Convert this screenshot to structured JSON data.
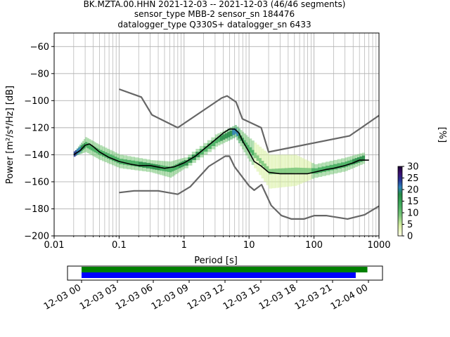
{
  "title": {
    "line1": "BK.MZTA.00.HHN   2021-12-03 -- 2021-12-03  (46/46 segments)",
    "line2": "sensor_type MBB-2 sensor_sn 184476",
    "line3": "datalogger_type Q330S+ datalogger_sn 6433"
  },
  "chart_data": [
    {
      "type": "heatmap",
      "title": "BK.MZTA.00.HHN   2021-12-03 -- 2021-12-03  (46/46 segments)",
      "xlabel": "Period [s]",
      "ylabel": "Power [m²/s⁴/Hz] [dB]",
      "xscale": "log",
      "xlim": [
        0.01,
        1000
      ],
      "ylim": [
        -200,
        -50
      ],
      "x_ticks": [
        0.01,
        0.1,
        1,
        10,
        100,
        1000
      ],
      "x_tick_labels": [
        "0.01",
        "0.1",
        "1",
        "10",
        "100",
        "1000"
      ],
      "y_ticks": [
        -200,
        -180,
        -160,
        -140,
        -120,
        -100,
        -80,
        -60
      ],
      "y_tick_labels": [
        "−200",
        "−180",
        "−160",
        "−140",
        "−120",
        "−100",
        "−80",
        "−60"
      ],
      "grid": true,
      "colorbar": {
        "label": "[%]",
        "ticks": [
          0,
          5,
          10,
          15,
          20,
          25,
          30
        ],
        "range": [
          0,
          30
        ],
        "colormap": [
          "#ffffe5",
          "#d9f0a3",
          "#78c679",
          "#41ab5d",
          "#238b45",
          "#2c7fb8",
          "#253494",
          "#3b0f70",
          "#1a0033"
        ]
      },
      "series": [
        {
          "name": "",
          "role": "mean",
          "color": "#000000",
          "points": [
            [
              0.02,
              -140
            ],
            [
              0.025,
              -137
            ],
            [
              0.03,
              -133
            ],
            [
              0.035,
              -132
            ],
            [
              0.04,
              -134
            ],
            [
              0.05,
              -138
            ],
            [
              0.07,
              -142
            ],
            [
              0.1,
              -145
            ],
            [
              0.15,
              -147
            ],
            [
              0.2,
              -148
            ],
            [
              0.3,
              -148
            ],
            [
              0.5,
              -150
            ],
            [
              0.7,
              -149
            ],
            [
              1,
              -146
            ],
            [
              1.5,
              -141
            ],
            [
              2,
              -136
            ],
            [
              3,
              -129
            ],
            [
              4,
              -124
            ],
            [
              5,
              -121
            ],
            [
              6,
              -121
            ],
            [
              7,
              -124
            ],
            [
              8,
              -130
            ],
            [
              10,
              -138
            ],
            [
              12,
              -145
            ],
            [
              15,
              -148
            ],
            [
              20,
              -153
            ],
            [
              30,
              -154
            ],
            [
              50,
              -154
            ],
            [
              80,
              -154
            ],
            [
              100,
              -153
            ],
            [
              150,
              -151
            ],
            [
              200,
              -150
            ],
            [
              300,
              -148
            ],
            [
              400,
              -146
            ],
            [
              500,
              -144
            ],
            [
              700,
              -144
            ]
          ]
        },
        {
          "name": "",
          "role": "noise-model-high",
          "color": "#666666",
          "points": [
            [
              0.1,
              -91.5
            ],
            [
              0.22,
              -97.4
            ],
            [
              0.32,
              -110.5
            ],
            [
              0.8,
              -120
            ],
            [
              3.8,
              -98
            ],
            [
              4.6,
              -96.5
            ],
            [
              6.3,
              -101
            ],
            [
              7.9,
              -113.5
            ],
            [
              15.4,
              -120
            ],
            [
              20,
              -138
            ],
            [
              354.8,
              -126
            ],
            [
              1000,
              -111
            ]
          ]
        },
        {
          "name": "",
          "role": "noise-model-low",
          "color": "#666666",
          "points": [
            [
              0.1,
              -168
            ],
            [
              0.17,
              -166.7
            ],
            [
              0.4,
              -166.7
            ],
            [
              0.8,
              -169.2
            ],
            [
              1.24,
              -163.7
            ],
            [
              2.4,
              -148.6
            ],
            [
              4.3,
              -141.1
            ],
            [
              5,
              -141.1
            ],
            [
              6,
              -149
            ],
            [
              10,
              -163
            ],
            [
              12,
              -166.2
            ],
            [
              15.6,
              -162.1
            ],
            [
              21.9,
              -177.5
            ],
            [
              31.6,
              -185
            ],
            [
              45,
              -187.5
            ],
            [
              70,
              -187.5
            ],
            [
              101,
              -185
            ],
            [
              154,
              -185
            ],
            [
              328,
              -187.5
            ],
            [
              600,
              -184.4
            ],
            [
              1000,
              -178
            ]
          ]
        }
      ],
      "density": [
        {
          "x": 0.02,
          "y": [
            -141,
            -138
          ],
          "level": 22
        },
        {
          "x": 0.03,
          "y": [
            -138,
            -127
          ],
          "level": 12
        },
        {
          "x": 0.05,
          "y": [
            -144,
            -133
          ],
          "level": 10
        },
        {
          "x": 0.1,
          "y": [
            -150,
            -140
          ],
          "level": 12
        },
        {
          "x": 0.3,
          "y": [
            -153,
            -144
          ],
          "level": 14
        },
        {
          "x": 0.6,
          "y": [
            -157,
            -145
          ],
          "level": 12
        },
        {
          "x": 1,
          "y": [
            -150,
            -142
          ],
          "level": 14
        },
        {
          "x": 3,
          "y": [
            -134,
            -125
          ],
          "level": 12
        },
        {
          "x": 6,
          "y": [
            -127,
            -118
          ],
          "level": 18
        },
        {
          "x": 10,
          "y": [
            -145,
            -128
          ],
          "level": 10
        },
        {
          "x": 20,
          "y": [
            -165,
            -140
          ],
          "level": 6
        },
        {
          "x": 50,
          "y": [
            -163,
            -140
          ],
          "level": 6
        },
        {
          "x": 100,
          "y": [
            -157,
            -147
          ],
          "level": 10
        },
        {
          "x": 300,
          "y": [
            -152,
            -142
          ],
          "level": 12
        },
        {
          "x": 600,
          "y": [
            -146,
            -138
          ],
          "level": 16
        }
      ]
    },
    {
      "type": "bar",
      "role": "data-coverage",
      "xlim": [
        "2021-12-03 00:00",
        "2021-12-04 03:00"
      ],
      "x_tick_labels": [
        "12-03 00",
        "12-03 03",
        "12-03 06",
        "12-03 09",
        "12-03 12",
        "12-03 15",
        "12-03 18",
        "12-03 21",
        "12-04 00"
      ],
      "series": [
        {
          "name": "",
          "color": "#008000",
          "start": "2021-12-03 00:00",
          "end": "2021-12-04 00:30"
        },
        {
          "name": "",
          "color": "#0000ff",
          "start": "2021-12-03 00:00",
          "end": "2021-12-03 23:30"
        }
      ]
    }
  ]
}
